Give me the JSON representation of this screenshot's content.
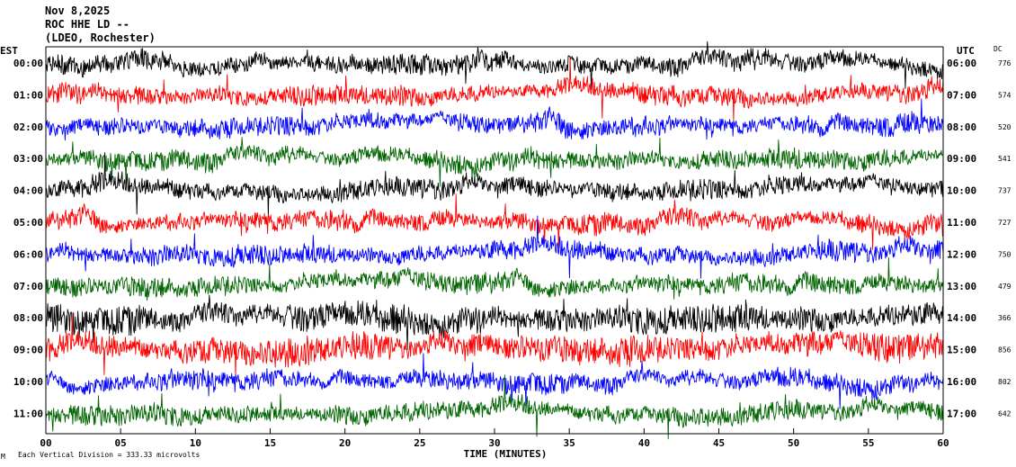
{
  "header": {
    "line1": "Nov 8,2025",
    "line2": "ROC HHE LD --",
    "line3": "(LDEO, Rochester)"
  },
  "labels": {
    "left_zone": "EST",
    "right_zone": "UTC",
    "dc_header": "DC",
    "time_axis": "TIME (MINUTES)",
    "scale_note": "Each Vertical Division =  333.33 microvolts",
    "corner_mark": "M"
  },
  "chart_data": {
    "type": "line",
    "title": "",
    "xlabel": "TIME (MINUTES)",
    "ylabel": "",
    "xlim": [
      0,
      60
    ],
    "x_ticks": [
      "00",
      "05",
      "10",
      "15",
      "20",
      "25",
      "30",
      "35",
      "40",
      "45",
      "50",
      "55",
      "60"
    ],
    "rows": [
      {
        "est": "00:00",
        "utc": "06:00",
        "dc": "776",
        "color": "#000000"
      },
      {
        "est": "01:00",
        "utc": "07:00",
        "dc": "574",
        "color": "#ff0000"
      },
      {
        "est": "02:00",
        "utc": "08:00",
        "dc": "520",
        "color": "#0000ff"
      },
      {
        "est": "03:00",
        "utc": "09:00",
        "dc": "541",
        "color": "#006400"
      },
      {
        "est": "04:00",
        "utc": "10:00",
        "dc": "737",
        "color": "#000000"
      },
      {
        "est": "05:00",
        "utc": "11:00",
        "dc": "727",
        "color": "#ff0000"
      },
      {
        "est": "06:00",
        "utc": "12:00",
        "dc": "750",
        "color": "#0000ff"
      },
      {
        "est": "07:00",
        "utc": "13:00",
        "dc": "479",
        "color": "#006400"
      },
      {
        "est": "08:00",
        "utc": "14:00",
        "dc": "366",
        "color": "#000000"
      },
      {
        "est": "09:00",
        "utc": "15:00",
        "dc": "856",
        "color": "#ff0000"
      },
      {
        "est": "10:00",
        "utc": "16:00",
        "dc": "802",
        "color": "#0000ff"
      },
      {
        "est": "11:00",
        "utc": "17:00",
        "dc": "642",
        "color": "#006400"
      }
    ]
  }
}
